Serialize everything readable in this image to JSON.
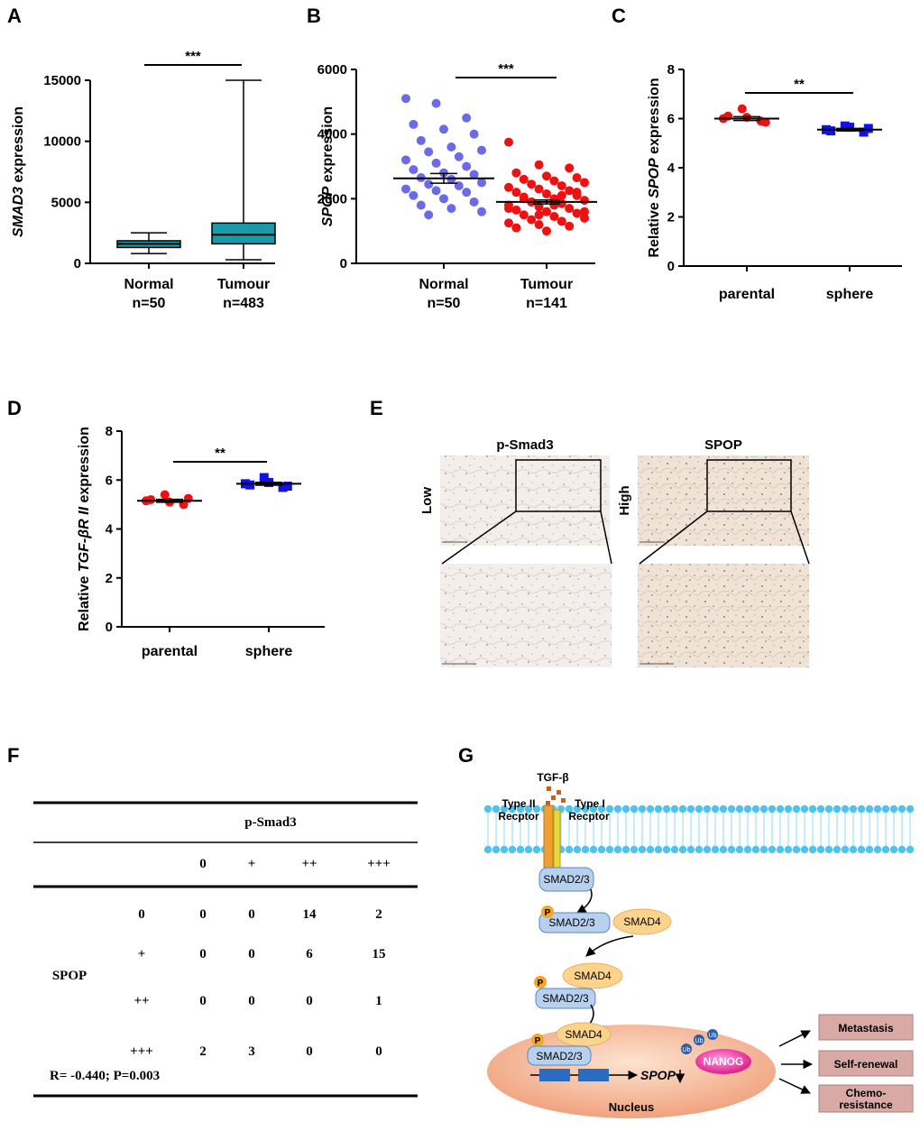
{
  "chart_data": [
    {
      "type": "box",
      "label": "A",
      "ylabel": [
        {
          "text": "SMAD3",
          "italic": true
        },
        {
          "text": " expression"
        }
      ],
      "categories": [
        "Normal",
        "Tumour"
      ],
      "sample_sizes": [
        "n=50",
        "n=483"
      ],
      "boxes": [
        {
          "min": 800,
          "q1": 1300,
          "median": 1600,
          "q3": 1850,
          "max": 2500
        },
        {
          "min": 300,
          "q1": 1600,
          "median": 2350,
          "q3": 3300,
          "max": 15000
        }
      ],
      "color": "#1a9aa8",
      "significance": "***",
      "ylim": [
        0,
        15000
      ],
      "yticks": [
        0,
        5000,
        10000,
        15000
      ]
    },
    {
      "type": "strip",
      "label": "B",
      "ylabel": [
        {
          "text": "SPOP",
          "italic": true
        },
        {
          "text": " expression"
        }
      ],
      "categories": [
        "Normal",
        "Tumour"
      ],
      "sample_sizes": [
        "n=50",
        "n=141"
      ],
      "series": [
        {
          "color": "#6b6bea",
          "marker": "circle",
          "mean": 2630,
          "error": 150,
          "values": [
            5100,
            4950,
            4500,
            4300,
            4150,
            4000,
            3800,
            3600,
            3500,
            3450,
            3300,
            3200,
            3100,
            3000,
            2900,
            2800,
            2750,
            2650,
            2600,
            2500,
            2450,
            2400,
            2300,
            2250,
            2200,
            2100,
            2000,
            1900,
            1800,
            1700,
            1600,
            1500
          ]
        },
        {
          "color": "#ee1111",
          "marker": "circle",
          "mean": 1900,
          "error": 60,
          "values": [
            3750,
            3050,
            2950,
            2800,
            2700,
            2650,
            2600,
            2550,
            2500,
            2450,
            2400,
            2350,
            2300,
            2250,
            2200,
            2150,
            2100,
            2050,
            2000,
            1950,
            1900,
            1850,
            1800,
            1750,
            1700,
            1650,
            1600,
            1550,
            1500,
            1450,
            1400,
            1350,
            1300,
            1250,
            1200,
            1150,
            1100,
            1000,
            2200,
            2000,
            1800,
            1600,
            1900,
            2100,
            1700,
            1500
          ]
        }
      ],
      "significance": "***",
      "ylim": [
        0,
        6000
      ],
      "yticks": [
        0,
        2000,
        4000,
        6000
      ]
    },
    {
      "type": "strip",
      "label": "C",
      "ylabel": [
        {
          "text": "Relative "
        },
        {
          "text": "SPOP",
          "italic": true
        },
        {
          "text": " expression"
        }
      ],
      "categories": [
        "parental",
        "sphere"
      ],
      "series": [
        {
          "color": "#ee1111",
          "marker": "circle",
          "mean": 6.0,
          "error": 0.08,
          "values": [
            6.0,
            6.4,
            5.9,
            6.1,
            6.05,
            5.85
          ]
        },
        {
          "color": "#1111ee",
          "marker": "square",
          "mean": 5.55,
          "error": 0.05,
          "values": [
            5.55,
            5.7,
            5.45,
            5.5,
            5.65,
            5.6
          ]
        }
      ],
      "significance": "**",
      "ylim": [
        0,
        8
      ],
      "yticks": [
        0,
        2,
        4,
        6,
        8
      ]
    },
    {
      "type": "strip",
      "label": "D",
      "ylabel": [
        {
          "text": "Relative "
        },
        {
          "text": "TGF-βR II",
          "italic": true
        },
        {
          "text": " expression"
        }
      ],
      "categories": [
        "parental",
        "sphere"
      ],
      "series": [
        {
          "color": "#ee1111",
          "marker": "circle",
          "mean": 5.15,
          "error": 0.06,
          "values": [
            5.15,
            5.4,
            5.0,
            5.2,
            5.1,
            5.25
          ]
        },
        {
          "color": "#1111ee",
          "marker": "square",
          "mean": 5.85,
          "error": 0.06,
          "values": [
            5.85,
            6.1,
            5.7,
            5.8,
            5.9,
            5.75
          ]
        }
      ],
      "significance": "**",
      "ylim": [
        0,
        8
      ],
      "yticks": [
        0,
        2,
        4,
        6,
        8
      ]
    }
  ],
  "panel_e": {
    "label": "E",
    "columns": [
      "p-Smad3",
      "SPOP"
    ],
    "image_labels": [
      "Low",
      "High"
    ]
  },
  "table": {
    "label": "F",
    "column_group": "p-Smad3",
    "columns": [
      "0",
      "+",
      "++",
      "+++"
    ],
    "row_group": "SPOP",
    "rows": [
      {
        "label": "0",
        "cells": [
          0,
          0,
          14,
          2
        ]
      },
      {
        "label": "+",
        "cells": [
          0,
          0,
          6,
          15
        ]
      },
      {
        "label": "++",
        "cells": [
          0,
          0,
          0,
          1
        ]
      },
      {
        "label": "+++",
        "cells": [
          2,
          3,
          0,
          0
        ]
      }
    ],
    "note": "R= -0.440; P=0.003"
  },
  "diagram": {
    "label": "G",
    "ligand": "TGF-β",
    "receptor_2": [
      "Type II",
      "Recptor"
    ],
    "receptor_1": [
      "Type I",
      "Recptor"
    ],
    "smad23": "SMAD2/3",
    "smad4": "SMAD4",
    "phospho": "P",
    "ubiquitin": "Ub",
    "nanog": "NANOG",
    "gene": "SPOP",
    "nucleus": "Nucleus",
    "outcomes": [
      [
        "Metastasis"
      ],
      [
        "Self-renewal"
      ],
      [
        "Chemo-",
        "resistance"
      ]
    ]
  }
}
